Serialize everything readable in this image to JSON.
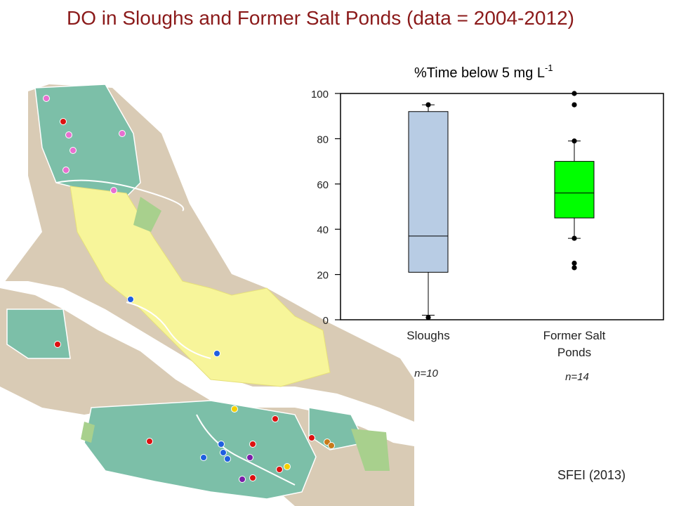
{
  "title": "DO in Sloughs and Former Salt Ponds  (data = 2004-2012)",
  "source": "SFEI (2013)",
  "colors": {
    "title": "#8b1a1a",
    "sloughs_box": "#b8cce4",
    "ponds_box": "#00ff00",
    "map_wetland": "#7cbfa8",
    "map_upland": "#d9cbb5",
    "map_salt_pond": "#f7f59a",
    "map_marsh": "#a8d08d",
    "map_water": "#ffffff"
  },
  "map": {
    "site_markers": [
      {
        "color": "#e86fd0",
        "kind": "pink"
      },
      {
        "color": "#e86fd0",
        "kind": "pink"
      },
      {
        "color": "#e86fd0",
        "kind": "pink"
      },
      {
        "color": "#e86fd0",
        "kind": "pink"
      },
      {
        "color": "#e86fd0",
        "kind": "pink"
      },
      {
        "color": "#e86fd0",
        "kind": "pink"
      },
      {
        "color": "#dd1111",
        "kind": "red"
      },
      {
        "color": "#1f5fe0",
        "kind": "blue"
      },
      {
        "color": "#1f5fe0",
        "kind": "blue"
      },
      {
        "color": "#dd1111",
        "kind": "red"
      },
      {
        "color": "#f5d000",
        "kind": "yellow"
      },
      {
        "color": "#dd1111",
        "kind": "red"
      },
      {
        "color": "#dd1111",
        "kind": "red"
      },
      {
        "color": "#1f5fe0",
        "kind": "blue"
      },
      {
        "color": "#1f5fe0",
        "kind": "blue"
      },
      {
        "color": "#1f5fe0",
        "kind": "blue"
      },
      {
        "color": "#dd1111",
        "kind": "red"
      },
      {
        "color": "#1f5fe0",
        "kind": "blue"
      },
      {
        "color": "#7a1fa8",
        "kind": "purple"
      },
      {
        "color": "#dd1111",
        "kind": "red"
      },
      {
        "color": "#dd1111",
        "kind": "red"
      },
      {
        "color": "#c87a1a",
        "kind": "orange"
      },
      {
        "color": "#c87a1a",
        "kind": "orange"
      },
      {
        "color": "#dd1111",
        "kind": "red"
      },
      {
        "color": "#f5d000",
        "kind": "yellow"
      },
      {
        "color": "#7a1fa8",
        "kind": "purple"
      }
    ]
  },
  "chart_data": {
    "type": "box",
    "title": "%Time below 5 mg L",
    "title_superscript": "-1",
    "ylim": [
      0,
      100
    ],
    "yticks": [
      0,
      20,
      40,
      60,
      80,
      100
    ],
    "grid": false,
    "series": [
      {
        "category": "Sloughs",
        "sample_label": "n=10",
        "color": "#b8cce4",
        "whisker_low": 2,
        "q1": 21,
        "median": 37,
        "q3": 92,
        "whisker_high": 95,
        "outliers": [
          1,
          95
        ]
      },
      {
        "category": "Former Salt Ponds",
        "category_lines": [
          "Former Salt",
          "Ponds"
        ],
        "sample_label": "n=14",
        "color": "#00ff00",
        "whisker_low": 36,
        "q1": 45,
        "median": 56,
        "q3": 70,
        "whisker_high": 79,
        "outliers": [
          23,
          25,
          36,
          79,
          95,
          100
        ]
      }
    ]
  }
}
